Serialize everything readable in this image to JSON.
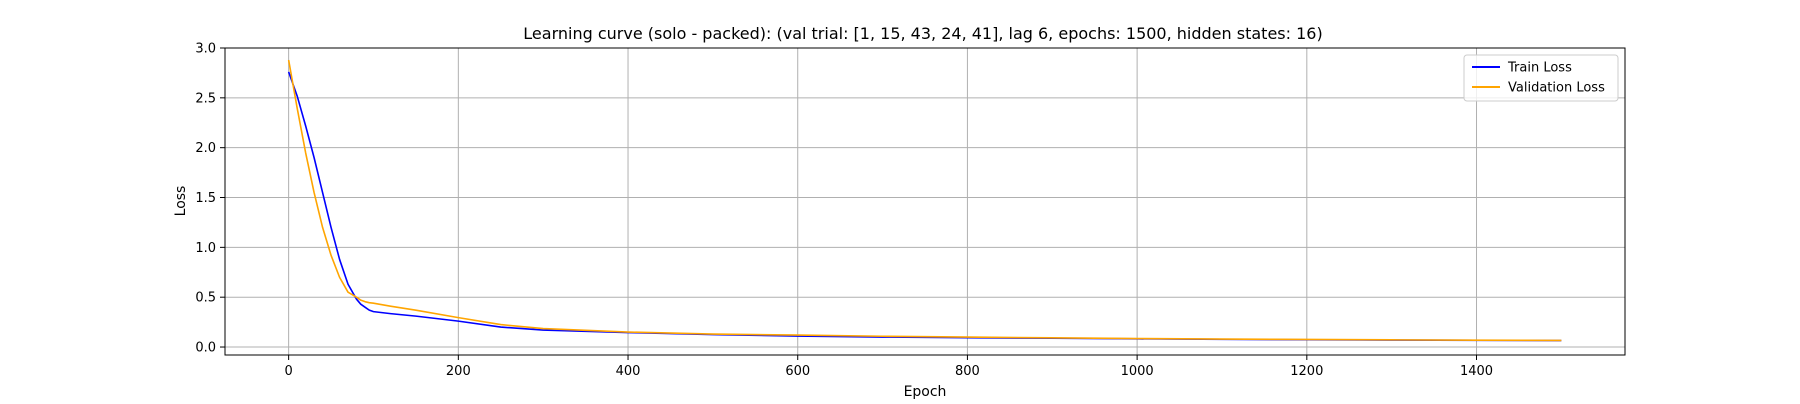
{
  "chart_data": {
    "type": "line",
    "title": "Learning curve (solo - packed): (val trial: [1, 15, 43, 24, 41], lag 6, epochs: 1500, hidden states: 16)",
    "xlabel": "Epoch",
    "ylabel": "Loss",
    "xlim": [
      -75,
      1575
    ],
    "ylim": [
      -0.08,
      3.0
    ],
    "xticks": [
      0,
      200,
      400,
      600,
      800,
      1000,
      1200,
      1400
    ],
    "xtick_labels": [
      "0",
      "200",
      "400",
      "600",
      "800",
      "1000",
      "1200",
      "1400"
    ],
    "yticks": [
      0.0,
      0.5,
      1.0,
      1.5,
      2.0,
      2.5,
      3.0
    ],
    "ytick_labels": [
      "0.0",
      "0.5",
      "1.0",
      "1.5",
      "2.0",
      "2.5",
      "3.0"
    ],
    "grid": true,
    "legend_position": "top-right",
    "series": [
      {
        "name": "Train Loss",
        "color": "#0000ff",
        "x": [
          0,
          10,
          20,
          30,
          40,
          50,
          60,
          70,
          80,
          85,
          90,
          95,
          100,
          110,
          120,
          150,
          200,
          250,
          300,
          400,
          500,
          600,
          700,
          800,
          900,
          1000,
          1100,
          1200,
          1300,
          1400,
          1500
        ],
        "y": [
          2.76,
          2.52,
          2.22,
          1.9,
          1.55,
          1.2,
          0.88,
          0.63,
          0.48,
          0.43,
          0.4,
          0.37,
          0.355,
          0.345,
          0.335,
          0.31,
          0.26,
          0.2,
          0.17,
          0.145,
          0.125,
          0.11,
          0.1,
          0.093,
          0.088,
          0.082,
          0.077,
          0.073,
          0.07,
          0.067,
          0.065
        ]
      },
      {
        "name": "Validation Loss",
        "color": "#ffa500",
        "x": [
          0,
          10,
          20,
          30,
          40,
          50,
          60,
          70,
          80,
          85,
          90,
          95,
          100,
          110,
          120,
          150,
          200,
          250,
          300,
          400,
          500,
          600,
          700,
          800,
          900,
          1000,
          1100,
          1200,
          1300,
          1400,
          1500
        ],
        "y": [
          2.88,
          2.4,
          1.95,
          1.55,
          1.2,
          0.92,
          0.7,
          0.55,
          0.5,
          0.47,
          0.455,
          0.445,
          0.44,
          0.425,
          0.41,
          0.37,
          0.295,
          0.225,
          0.185,
          0.15,
          0.13,
          0.12,
          0.108,
          0.1,
          0.092,
          0.085,
          0.08,
          0.076,
          0.072,
          0.069,
          0.066
        ]
      }
    ]
  }
}
